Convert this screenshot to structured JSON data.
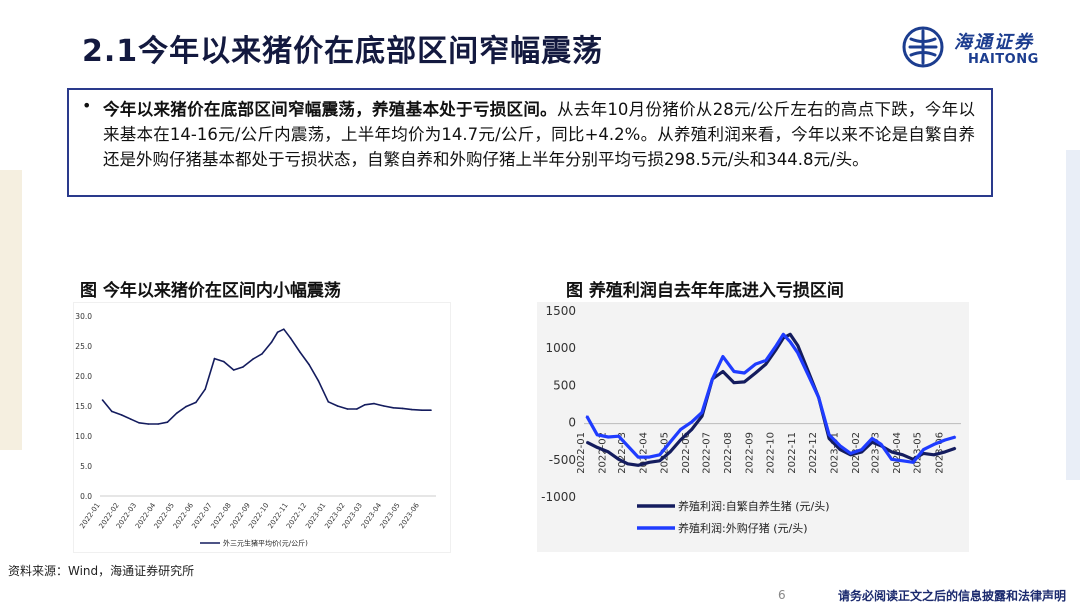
{
  "slide": {
    "title": "2.1今年以来猪价在底部区间窄幅震荡",
    "logo_cn": "海通证券",
    "logo_en": "HAITONG",
    "summary_bold": "今年以来猪价在底部区间窄幅震荡，养殖基本处于亏损区间。",
    "summary_text": "从去年10月份猪价从28元/公斤左右的高点下跌，今年以来基本在14-16元/公斤内震荡，上半年均价为14.7元/公斤，同比+4.2%。从养殖利润来看，今年以来不论是自繁自养还是外购仔猪基本都处于亏损状态，自繁自养和外购仔猪上半年分别平均亏损298.5元/头和344.8元/头。",
    "chart1_title": "图 今年以来猪价在区间内小幅震荡",
    "chart2_title": "图 养殖利润自去年年底进入亏损区间",
    "source": "资料来源：Wind，海通证券研究所",
    "page_number": "6",
    "disclaimer": "请务必阅读正文之后的信息披露和法律声明"
  },
  "colors": {
    "title": "#13193f",
    "accent": "#2a3a8c",
    "logo": "#1c3d8f",
    "series_dark": "#141c5e",
    "series_bright": "#1f3cff"
  },
  "chart_data": [
    {
      "type": "line",
      "title": "",
      "xlabel": "",
      "ylabel": "",
      "ylim": [
        0,
        30
      ],
      "yticks": [
        "0.0",
        "5.0",
        "10.0",
        "15.0",
        "20.0",
        "25.0",
        "30.0"
      ],
      "xtick_labels": [
        "2022-01",
        "2022-02",
        "2022-03",
        "2022-04",
        "2022-05",
        "2022-06",
        "2022-07",
        "2022-08",
        "2022-09",
        "2022-10",
        "2022-11",
        "2022-12",
        "2023-01",
        "2023-02",
        "2023-03",
        "2023-04",
        "2023-05",
        "2023-06"
      ],
      "legend_position": "bottom",
      "series": [
        {
          "name": "外三元生猪平均价(元/公斤)",
          "color": "#141c5e",
          "x": [
            "2022-01-05",
            "2022-01-20",
            "2022-02-05",
            "2022-02-20",
            "2022-03-05",
            "2022-03-20",
            "2022-04-05",
            "2022-04-20",
            "2022-05-05",
            "2022-05-20",
            "2022-06-05",
            "2022-06-20",
            "2022-07-05",
            "2022-07-20",
            "2022-08-05",
            "2022-08-20",
            "2022-09-05",
            "2022-09-20",
            "2022-10-05",
            "2022-10-15",
            "2022-10-25",
            "2022-11-05",
            "2022-11-20",
            "2022-12-05",
            "2022-12-20",
            "2023-01-05",
            "2023-01-20",
            "2023-02-05",
            "2023-02-20",
            "2023-03-05",
            "2023-03-20",
            "2023-04-05",
            "2023-04-20",
            "2023-05-05",
            "2023-05-20",
            "2023-06-05",
            "2023-06-20"
          ],
          "values": [
            16.0,
            14.1,
            13.5,
            12.8,
            12.2,
            12.0,
            12.0,
            12.3,
            13.8,
            14.9,
            15.6,
            17.8,
            22.9,
            22.4,
            21.0,
            21.5,
            22.8,
            23.7,
            25.6,
            27.3,
            27.8,
            26.3,
            24.0,
            21.9,
            19.2,
            15.7,
            15.0,
            14.5,
            14.5,
            15.2,
            15.4,
            15.0,
            14.7,
            14.6,
            14.4,
            14.3,
            14.3
          ]
        }
      ]
    },
    {
      "type": "line",
      "title": "",
      "xlabel": "",
      "ylabel": "",
      "ylim": [
        -1000,
        1500
      ],
      "yticks": [
        "-1000",
        "-500",
        "0",
        "500",
        "1000",
        "1500"
      ],
      "xtick_labels": [
        "2022-01",
        "2022-02",
        "2022-03",
        "2022-04",
        "2022-05",
        "2022-06",
        "2022-07",
        "2022-08",
        "2022-09",
        "2022-10",
        "2022-11",
        "2022-12",
        "2023-01",
        "2023-02",
        "2023-03",
        "2023-04",
        "2023-05",
        "2023-06"
      ],
      "legend_position": "bottom",
      "series": [
        {
          "name": "养殖利润:自繁自养生猪 (元/头)",
          "color": "#141c5e",
          "x": [
            "2022-01-05",
            "2022-01-20",
            "2022-02-05",
            "2022-02-20",
            "2022-03-05",
            "2022-03-20",
            "2022-04-05",
            "2022-04-20",
            "2022-05-05",
            "2022-05-20",
            "2022-06-05",
            "2022-06-20",
            "2022-07-05",
            "2022-07-20",
            "2022-08-05",
            "2022-08-20",
            "2022-09-05",
            "2022-09-20",
            "2022-10-05",
            "2022-10-15",
            "2022-10-25",
            "2022-11-05",
            "2022-11-20",
            "2022-12-05",
            "2022-12-20",
            "2023-01-05",
            "2023-01-20",
            "2023-02-05",
            "2023-02-20",
            "2023-03-05",
            "2023-03-20",
            "2023-04-05",
            "2023-04-20",
            "2023-05-05",
            "2023-05-20",
            "2023-06-05",
            "2023-06-20"
          ],
          "values": [
            -250,
            -320,
            -380,
            -480,
            -540,
            -560,
            -520,
            -500,
            -380,
            -220,
            -80,
            100,
            600,
            700,
            550,
            560,
            680,
            800,
            1000,
            1150,
            1200,
            1050,
            700,
            350,
            -200,
            -350,
            -420,
            -380,
            -250,
            -300,
            -380,
            -420,
            -480,
            -400,
            -420,
            -380,
            -330
          ]
        },
        {
          "name": "养殖利润:外购仔猪 (元/头)",
          "color": "#1f3cff",
          "x": [
            "2022-01-05",
            "2022-01-20",
            "2022-02-05",
            "2022-02-20",
            "2022-03-05",
            "2022-03-20",
            "2022-04-05",
            "2022-04-20",
            "2022-05-05",
            "2022-05-20",
            "2022-06-05",
            "2022-06-20",
            "2022-07-05",
            "2022-07-20",
            "2022-08-05",
            "2022-08-20",
            "2022-09-05",
            "2022-09-20",
            "2022-10-05",
            "2022-10-15",
            "2022-10-25",
            "2022-11-05",
            "2022-11-20",
            "2022-12-05",
            "2022-12-20",
            "2023-01-05",
            "2023-01-20",
            "2023-02-05",
            "2023-02-20",
            "2023-03-05",
            "2023-03-20",
            "2023-04-05",
            "2023-04-20",
            "2023-05-05",
            "2023-05-20",
            "2023-06-05",
            "2023-06-20"
          ],
          "values": [
            100,
            -150,
            -180,
            -170,
            -300,
            -450,
            -450,
            -420,
            -250,
            -80,
            20,
            150,
            600,
            900,
            700,
            680,
            800,
            850,
            1050,
            1200,
            1100,
            950,
            650,
            350,
            -150,
            -300,
            -400,
            -350,
            -200,
            -280,
            -480,
            -500,
            -520,
            -350,
            -280,
            -220,
            -180
          ]
        }
      ]
    }
  ]
}
